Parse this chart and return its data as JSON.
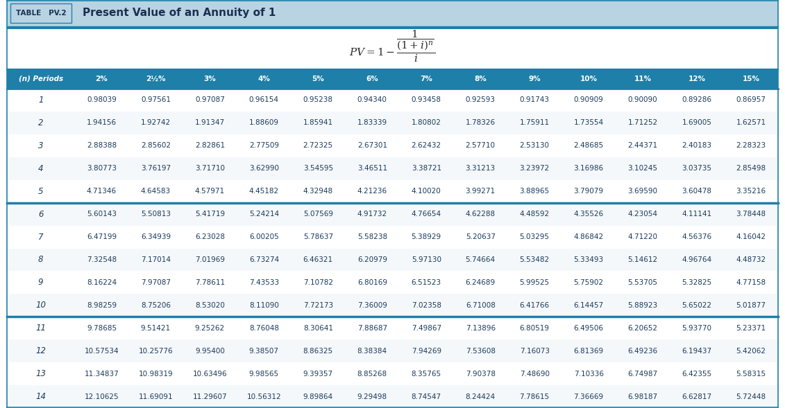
{
  "title_box_text": "TABLE   PV.2",
  "title_text": "Present Value of an Annuity of 1",
  "col_headers": [
    "(n) Periods",
    "2%",
    "2½%",
    "3%",
    "4%",
    "5%",
    "6%",
    "7%",
    "8%",
    "9%",
    "10%",
    "11%",
    "12%",
    "15%"
  ],
  "rows": [
    [
      1,
      0.98039,
      0.97561,
      0.97087,
      0.96154,
      0.95238,
      0.9434,
      0.93458,
      0.92593,
      0.91743,
      0.90909,
      0.9009,
      0.89286,
      0.86957
    ],
    [
      2,
      1.94156,
      1.92742,
      1.91347,
      1.88609,
      1.85941,
      1.83339,
      1.80802,
      1.78326,
      1.75911,
      1.73554,
      1.71252,
      1.69005,
      1.62571
    ],
    [
      3,
      2.88388,
      2.85602,
      2.82861,
      2.77509,
      2.72325,
      2.67301,
      2.62432,
      2.5771,
      2.5313,
      2.48685,
      2.44371,
      2.40183,
      2.28323
    ],
    [
      4,
      3.80773,
      3.76197,
      3.7171,
      3.6299,
      3.54595,
      3.46511,
      3.38721,
      3.31213,
      3.23972,
      3.16986,
      3.10245,
      3.03735,
      2.85498
    ],
    [
      5,
      4.71346,
      4.64583,
      4.57971,
      4.45182,
      4.32948,
      4.21236,
      4.1002,
      3.99271,
      3.88965,
      3.79079,
      3.6959,
      3.60478,
      3.35216
    ],
    [
      6,
      5.60143,
      5.50813,
      5.41719,
      5.24214,
      5.07569,
      4.91732,
      4.76654,
      4.62288,
      4.48592,
      4.35526,
      4.23054,
      4.11141,
      3.78448
    ],
    [
      7,
      6.47199,
      6.34939,
      6.23028,
      6.00205,
      5.78637,
      5.58238,
      5.38929,
      5.20637,
      5.03295,
      4.86842,
      4.7122,
      4.56376,
      4.16042
    ],
    [
      8,
      7.32548,
      7.17014,
      7.01969,
      6.73274,
      6.46321,
      6.20979,
      5.9713,
      5.74664,
      5.53482,
      5.33493,
      5.14612,
      4.96764,
      4.48732
    ],
    [
      9,
      8.16224,
      7.97087,
      7.78611,
      7.43533,
      7.10782,
      6.80169,
      6.51523,
      6.24689,
      5.99525,
      5.75902,
      5.53705,
      5.32825,
      4.77158
    ],
    [
      10,
      8.98259,
      8.75206,
      8.5302,
      8.1109,
      7.72173,
      7.36009,
      7.02358,
      6.71008,
      6.41766,
      6.14457,
      5.88923,
      5.65022,
      5.01877
    ],
    [
      11,
      9.78685,
      9.51421,
      9.25262,
      8.76048,
      8.30641,
      7.88687,
      7.49867,
      7.13896,
      6.80519,
      6.49506,
      6.20652,
      5.9377,
      5.23371
    ],
    [
      12,
      10.57534,
      10.25776,
      9.954,
      9.38507,
      8.86325,
      8.38384,
      7.94269,
      7.53608,
      7.16073,
      6.81369,
      6.49236,
      6.19437,
      5.42062
    ],
    [
      13,
      11.34837,
      10.98319,
      10.63496,
      9.98565,
      9.39357,
      8.85268,
      8.35765,
      7.90378,
      7.4869,
      7.10336,
      6.74987,
      6.42355,
      5.58315
    ],
    [
      14,
      12.10625,
      11.69091,
      11.29607,
      10.56312,
      9.89864,
      9.29498,
      8.74547,
      8.24424,
      7.78615,
      7.36669,
      6.98187,
      6.62817,
      5.72448
    ]
  ],
  "thick_border_after_rows": [
    5,
    10
  ],
  "title_bar_bg": "#b8d4e3",
  "title_bar_border": "#2a7fa8",
  "teal_divider": "#1e7fa8",
  "formula_bg": "#ffffff",
  "col_header_bg": "#1e7fa8",
  "col_header_text": "#ffffff",
  "data_row_bg1": "#ffffff",
  "data_row_bg2": "#f5f8fa",
  "text_color": "#1a3a5c",
  "title_box_bg": "#b8d4e3",
  "title_box_border": "#2a7fa8",
  "title_text_color": "#1a3050",
  "formula_text_color": "#2c2c2c",
  "thick_line_color": "#1e7fa8",
  "outer_border_color": "#1e7fa8"
}
